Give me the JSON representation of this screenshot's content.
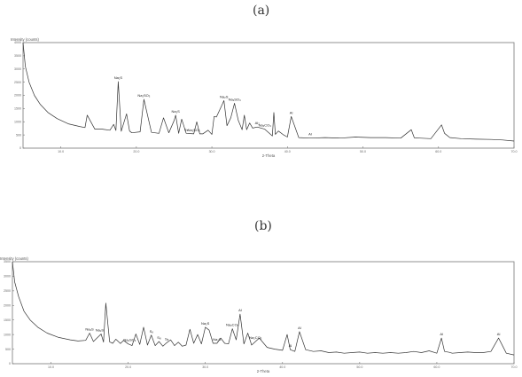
{
  "panels": {
    "a": {
      "label": "(a)"
    },
    "b": {
      "label": "(b)"
    }
  },
  "chart_data": [
    {
      "type": "line",
      "panel": "(a)",
      "ylabel": "Intensity (counts)",
      "xlabel": "2-Theta",
      "xlim": [
        5,
        70
      ],
      "ylim": [
        0,
        4000
      ],
      "x_ticks": [
        "10.0",
        "20.0",
        "30.0",
        "40.0",
        "50.0",
        "60.0",
        "70.0"
      ],
      "y_ticks": [
        "0",
        "500",
        "1000",
        "1500",
        "2000",
        "2500",
        "3000",
        "3500",
        "4000"
      ],
      "series": [
        {
          "x": [
            5.0,
            5.3,
            5.8,
            6.5,
            7.3,
            8.3,
            9.5,
            11,
            12.5,
            13.2,
            13.5,
            14.5,
            15.5,
            16.5,
            17.0,
            17.3,
            17.6,
            18.0,
            18.7,
            19.1,
            19.4,
            20.5,
            21.0,
            22.0,
            23.0,
            23.6,
            24.3,
            25.0,
            25.2,
            25.6,
            26.0,
            26.6,
            27.6,
            28.0,
            28.4,
            28.8,
            29.5,
            30.0,
            30.3,
            30.6,
            31.2,
            31.6,
            32.0,
            32.5,
            33.0,
            33.5,
            34.0,
            34.3,
            34.6,
            35.0,
            35.4,
            36.0,
            37.0,
            38.0,
            38.2,
            38.4,
            38.8,
            39.5,
            40.0,
            40.5,
            41.5,
            43.0,
            45.0,
            47.0,
            49.0,
            51.0,
            53.0,
            55.0,
            56.4,
            56.8,
            57.5,
            59.0,
            60.4,
            60.8,
            61.5,
            63.0,
            65.0,
            67.0,
            68.5,
            70.0
          ],
          "y": [
            4000,
            3100,
            2500,
            2000,
            1650,
            1350,
            1120,
            920,
            820,
            780,
            1250,
            720,
            720,
            680,
            900,
            670,
            2520,
            640,
            1300,
            650,
            580,
            620,
            1850,
            600,
            560,
            1150,
            580,
            1050,
            1250,
            560,
            1100,
            560,
            540,
            1000,
            540,
            540,
            680,
            520,
            1200,
            1180,
            1550,
            1800,
            850,
            1150,
            1700,
            1050,
            700,
            1250,
            700,
            950,
            760,
            800,
            720,
            460,
            1350,
            520,
            650,
            500,
            420,
            1200,
            400,
            380,
            400,
            380,
            420,
            400,
            400,
            380,
            700,
            390,
            380,
            360,
            880,
            560,
            400,
            360,
            340,
            330,
            310,
            270
          ]
        }
      ],
      "annotations": [
        {
          "x": 17.6,
          "text": "Na₂S"
        },
        {
          "x": 21.0,
          "text": "Na₂SO₃"
        },
        {
          "x": 25.2,
          "text": "Na₂S"
        },
        {
          "x": 26.6,
          "text": "S₈"
        },
        {
          "x": 27.6,
          "text": "Na₂SO₃"
        },
        {
          "x": 31.6,
          "text": "Na₂S"
        },
        {
          "x": 33.0,
          "text": "Na₂SO₄"
        },
        {
          "x": 36.0,
          "text": "Al₂"
        },
        {
          "x": 37.0,
          "text": "Na₂CO₃"
        },
        {
          "x": 40.5,
          "text": "Al"
        },
        {
          "x": 43.0,
          "text": "Al"
        }
      ]
    },
    {
      "type": "line",
      "panel": "(b)",
      "ylabel": "Intensity (counts)",
      "xlabel": "2-Theta",
      "xlim": [
        5,
        70
      ],
      "ylim": [
        0,
        3500
      ],
      "x_ticks": [
        "10.0",
        "20.0",
        "30.0",
        "40.0",
        "50.0",
        "60.0",
        "70.0"
      ],
      "y_ticks": [
        "0",
        "500",
        "1000",
        "1500",
        "2000",
        "2500",
        "3000",
        "3500"
      ],
      "series": [
        {
          "x": [
            5.0,
            5.3,
            5.8,
            6.5,
            7.3,
            8.3,
            9.5,
            11,
            12.5,
            13.5,
            14.5,
            15.0,
            15.5,
            16.5,
            16.8,
            17.1,
            17.6,
            18.0,
            18.4,
            19.0,
            19.4,
            20.0,
            20.5,
            21.0,
            21.5,
            22.0,
            22.5,
            23.0,
            23.5,
            24.0,
            24.5,
            25.0,
            25.5,
            26.0,
            26.5,
            27.0,
            27.5,
            28.0,
            28.5,
            29.0,
            29.5,
            30.0,
            30.5,
            31.0,
            31.5,
            32.0,
            32.5,
            33.0,
            33.5,
            34.0,
            34.5,
            35.0,
            35.5,
            36.0,
            37.0,
            38.0,
            39.0,
            40.0,
            40.6,
            41.0,
            41.6,
            42.2,
            43.0,
            44.0,
            45.0,
            46.0,
            47.0,
            48.0,
            49.0,
            50.0,
            51.0,
            52.0,
            53.0,
            54.0,
            55.0,
            56.0,
            57.0,
            58.0,
            59.0,
            60.0,
            60.6,
            61.0,
            61.6,
            62.0,
            63.0,
            64.0,
            65.0,
            66.0,
            67.0,
            68.0,
            69.0,
            70.0
          ],
          "y": [
            3500,
            2800,
            2300,
            1800,
            1500,
            1250,
            1050,
            900,
            820,
            780,
            800,
            1050,
            760,
            1020,
            740,
            2080,
            750,
            700,
            840,
            690,
            800,
            680,
            620,
            1020,
            660,
            1250,
            640,
            980,
            620,
            760,
            600,
            720,
            820,
            620,
            740,
            600,
            640,
            1180,
            700,
            1000,
            680,
            1250,
            1150,
            700,
            700,
            880,
            700,
            680,
            1200,
            820,
            1700,
            680,
            1050,
            640,
            880,
            560,
            500,
            460,
            1000,
            480,
            420,
            1100,
            480,
            420,
            440,
            380,
            400,
            360,
            380,
            400,
            360,
            380,
            360,
            380,
            360,
            380,
            420,
            380,
            440,
            360,
            880,
            420,
            390,
            360,
            380,
            400,
            380,
            380,
            420,
            880,
            360,
            300
          ]
        }
      ],
      "annotations": [
        {
          "x": 15.0,
          "text": "Na₂S"
        },
        {
          "x": 16.3,
          "text": "Na₂S"
        },
        {
          "x": 20.2,
          "text": "Na₂SO₃"
        },
        {
          "x": 23.0,
          "text": "S₈"
        },
        {
          "x": 24.0,
          "text": "S₈"
        },
        {
          "x": 25.0,
          "text": "S₈"
        },
        {
          "x": 30.0,
          "text": "Na₂S"
        },
        {
          "x": 31.5,
          "text": "Na₂S"
        },
        {
          "x": 33.5,
          "text": "Na₂CO₃"
        },
        {
          "x": 34.5,
          "text": "Al"
        },
        {
          "x": 36.5,
          "text": "Na₂CO₃"
        },
        {
          "x": 41.0,
          "text": "Al"
        },
        {
          "x": 42.2,
          "text": "Al"
        },
        {
          "x": 60.6,
          "text": "Al"
        },
        {
          "x": 68.0,
          "text": "Al"
        }
      ]
    }
  ]
}
